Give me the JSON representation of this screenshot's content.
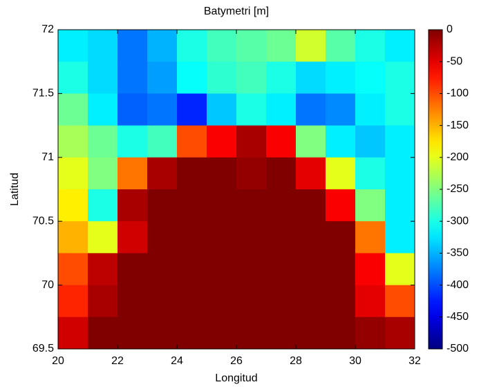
{
  "chart_data": {
    "type": "heatmap",
    "title": "Batymetri [m]",
    "x_label": "Longitud",
    "y_label": "Latitud",
    "colormap": "jet",
    "x": [
      20.5,
      21.5,
      22.5,
      23.5,
      24.5,
      25.5,
      26.5,
      27.5,
      28.5,
      29.5,
      30.5,
      31.5
    ],
    "y": [
      71.875,
      71.625,
      71.375,
      71.125,
      70.875,
      70.625,
      70.375,
      70.125,
      69.875,
      69.625
    ],
    "values": [
      [
        -320,
        -330,
        -380,
        -350,
        -300,
        -280,
        -270,
        -260,
        -210,
        -270,
        -300,
        -320
      ],
      [
        -300,
        -330,
        -380,
        -360,
        -310,
        -290,
        -280,
        -300,
        -330,
        -320,
        -310,
        -300
      ],
      [
        -260,
        -320,
        -390,
        -380,
        -420,
        -340,
        -300,
        -320,
        -380,
        -370,
        -320,
        -300
      ],
      [
        -230,
        -260,
        -300,
        -280,
        -100,
        -60,
        -20,
        -60,
        -250,
        -320,
        -340,
        -320
      ],
      [
        -200,
        -250,
        -120,
        -20,
        0,
        0,
        -10,
        0,
        -50,
        -200,
        -300,
        -320
      ],
      [
        -180,
        -300,
        -20,
        0,
        0,
        0,
        0,
        0,
        0,
        -60,
        -250,
        -320
      ],
      [
        -150,
        -200,
        -40,
        0,
        0,
        0,
        0,
        0,
        0,
        0,
        -120,
        -320
      ],
      [
        -100,
        -30,
        0,
        0,
        0,
        0,
        0,
        0,
        0,
        0,
        -60,
        -200
      ],
      [
        -80,
        -20,
        0,
        0,
        0,
        0,
        0,
        0,
        0,
        0,
        -50,
        -100
      ],
      [
        -40,
        0,
        0,
        0,
        0,
        0,
        0,
        0,
        0,
        0,
        -10,
        -20
      ]
    ],
    "xlim": [
      20,
      32
    ],
    "ylim": [
      69.5,
      72
    ],
    "xticks": [
      20,
      22,
      24,
      26,
      28,
      30,
      32
    ],
    "yticks": [
      69.5,
      70,
      70.5,
      71,
      71.5,
      72
    ],
    "clim": [
      -500,
      0
    ],
    "cticks": [
      0,
      -50,
      -100,
      -150,
      -200,
      -250,
      -300,
      -350,
      -400,
      -450,
      -500
    ]
  }
}
